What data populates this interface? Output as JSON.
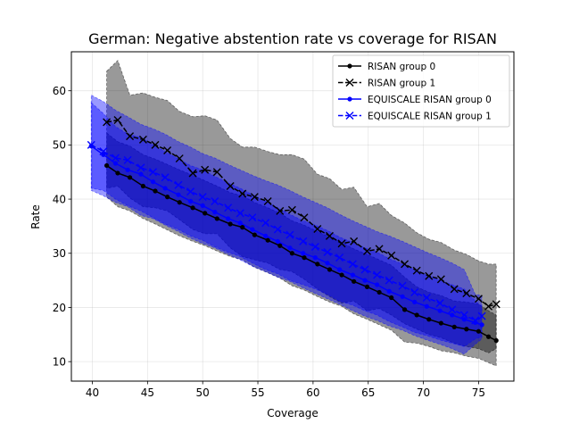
{
  "chart_data": {
    "type": "line",
    "title": "German: Negative abstention rate vs coverage for RISAN",
    "xlabel": "Coverage",
    "ylabel": "Rate",
    "xlim": [
      38.1,
      78.2
    ],
    "ylim": [
      6.4,
      67.2
    ],
    "xticks": [
      40,
      45,
      50,
      55,
      60,
      65,
      70,
      75
    ],
    "yticks": [
      10,
      20,
      30,
      40,
      50,
      60
    ],
    "grid": true,
    "legend_position": "top-right",
    "series": [
      {
        "name": "RISAN group 0",
        "color": "#000000",
        "marker": "dot",
        "linestyle": "solid",
        "band_color": "#000000",
        "x": [
          41.3,
          42.3,
          43.4,
          44.6,
          45.7,
          46.8,
          47.9,
          49.1,
          50.2,
          51.3,
          52.5,
          53.6,
          54.7,
          55.9,
          57.0,
          58.1,
          59.2,
          60.4,
          61.5,
          62.6,
          63.7,
          64.9,
          66.0,
          67.1,
          68.3,
          69.4,
          70.5,
          71.6,
          72.8,
          73.9,
          75.0,
          75.9,
          76.6
        ],
        "values": [
          46.2,
          44.8,
          44.0,
          42.4,
          41.5,
          40.4,
          39.4,
          38.4,
          37.4,
          36.4,
          35.4,
          34.8,
          33.4,
          32.4,
          31.4,
          30.0,
          29.2,
          28.0,
          27.0,
          26.0,
          24.8,
          23.8,
          22.8,
          21.8,
          19.6,
          18.6,
          17.8,
          17.1,
          16.4,
          16.0,
          15.6,
          14.6,
          13.9
        ],
        "lower": [
          40.4,
          38.6,
          37.8,
          36.4,
          35.4,
          34.3,
          33.2,
          32.2,
          31.4,
          30.4,
          29.4,
          28.8,
          27.4,
          26.4,
          25.4,
          24.0,
          23.2,
          22.0,
          21.0,
          20.2,
          18.8,
          17.8,
          16.8,
          15.8,
          13.6,
          13.4,
          12.8,
          12.0,
          11.6,
          11.0,
          10.6,
          9.8,
          9.2
        ],
        "upper": [
          52.2,
          50.6,
          49.8,
          48.2,
          47.4,
          46.4,
          45.4,
          44.4,
          43.4,
          42.4,
          41.2,
          40.6,
          39.4,
          38.4,
          37.4,
          36.0,
          35.2,
          34.0,
          33.0,
          32.0,
          30.8,
          29.8,
          28.8,
          27.8,
          25.6,
          23.8,
          22.8,
          22.2,
          21.2,
          21.0,
          20.6,
          19.4,
          18.6
        ]
      },
      {
        "name": "RISAN group 1",
        "color": "#000000",
        "marker": "x",
        "linestyle": "dashed",
        "band_color": "#000000",
        "x": [
          41.3,
          42.3,
          43.4,
          44.6,
          45.7,
          46.8,
          47.9,
          49.1,
          50.2,
          51.3,
          52.5,
          53.6,
          54.7,
          55.9,
          57.0,
          58.1,
          59.2,
          60.4,
          61.5,
          62.6,
          63.7,
          64.9,
          66.0,
          67.1,
          68.3,
          69.4,
          70.5,
          71.6,
          72.8,
          73.9,
          75.0,
          75.9,
          76.6
        ],
        "values": [
          54.2,
          54.6,
          51.6,
          51.0,
          50.0,
          49.0,
          47.5,
          44.8,
          45.4,
          45.0,
          42.4,
          41.0,
          40.4,
          39.6,
          37.8,
          38.0,
          36.6,
          34.5,
          33.2,
          31.8,
          32.2,
          30.4,
          30.8,
          29.6,
          28.0,
          26.8,
          25.8,
          25.2,
          23.4,
          22.6,
          21.6,
          20.2,
          20.6
        ],
        "lower": [
          42.0,
          42.4,
          40.2,
          38.6,
          38.4,
          37.8,
          36.2,
          34.4,
          33.6,
          33.6,
          31.0,
          29.4,
          28.8,
          28.2,
          27.0,
          26.6,
          25.2,
          23.4,
          22.0,
          20.8,
          21.2,
          19.4,
          19.8,
          18.6,
          17.0,
          16.0,
          15.0,
          14.4,
          13.4,
          12.8,
          12.4,
          11.6,
          12.4
        ],
        "upper": [
          63.6,
          65.6,
          59.2,
          59.6,
          58.8,
          58.2,
          56.2,
          55.2,
          55.4,
          54.6,
          51.2,
          49.6,
          49.6,
          48.8,
          48.2,
          48.2,
          47.4,
          44.6,
          43.8,
          41.8,
          42.2,
          38.6,
          39.2,
          37.0,
          35.6,
          33.8,
          32.6,
          32.0,
          30.6,
          29.8,
          28.6,
          28.0,
          28.0
        ]
      },
      {
        "name": "EQUISCALE RISAN group 0",
        "color": "#0000ff",
        "marker": "dot",
        "linestyle": "solid",
        "band_color": "#0000ff",
        "x": [
          39.9,
          41.0,
          42.1,
          43.2,
          44.4,
          45.5,
          46.6,
          47.8,
          48.9,
          50.0,
          51.1,
          52.3,
          53.4,
          54.5,
          55.7,
          56.8,
          57.9,
          59.1,
          60.2,
          61.3,
          62.4,
          63.6,
          64.7,
          65.8,
          66.9,
          68.1,
          69.2,
          70.3,
          71.5,
          72.6,
          73.7,
          74.7,
          75.3
        ],
        "values": [
          49.8,
          48.2,
          46.6,
          45.4,
          44.6,
          43.2,
          42.0,
          40.8,
          39.6,
          38.8,
          37.6,
          36.4,
          35.6,
          34.4,
          33.2,
          32.2,
          31.0,
          30.0,
          29.2,
          28.2,
          27.0,
          26.0,
          25.0,
          24.2,
          23.0,
          22.0,
          21.0,
          20.2,
          19.4,
          18.6,
          17.8,
          17.2,
          16.8
        ],
        "lower": [
          42.0,
          41.6,
          40.0,
          38.8,
          37.8,
          36.6,
          35.4,
          34.4,
          33.2,
          32.4,
          31.2,
          30.2,
          29.4,
          28.2,
          27.0,
          26.2,
          25.0,
          24.2,
          23.4,
          22.4,
          21.2,
          20.4,
          19.4,
          18.6,
          17.4,
          16.4,
          15.4,
          14.8,
          14.0,
          13.4,
          12.8,
          14.2,
          14.6
        ],
        "upper": [
          57.8,
          55.8,
          53.4,
          52.0,
          51.4,
          50.0,
          48.8,
          47.4,
          46.2,
          45.4,
          44.2,
          43.0,
          42.0,
          40.8,
          39.6,
          38.4,
          37.2,
          36.0,
          35.2,
          34.2,
          33.0,
          32.0,
          31.0,
          30.2,
          29.0,
          28.0,
          27.0,
          26.0,
          25.0,
          24.2,
          23.4,
          21.2,
          20.2
        ]
      },
      {
        "name": "EQUISCALE RISAN group 1",
        "color": "#0000ff",
        "marker": "x",
        "linestyle": "dashed",
        "band_color": "#0000ff",
        "x": [
          39.9,
          41.0,
          42.1,
          43.2,
          44.4,
          45.5,
          46.6,
          47.8,
          48.9,
          50.0,
          51.1,
          52.3,
          53.4,
          54.5,
          55.7,
          56.8,
          57.9,
          59.1,
          60.2,
          61.3,
          62.4,
          63.6,
          64.7,
          65.8,
          66.9,
          68.1,
          69.2,
          70.3,
          71.5,
          72.6,
          73.7,
          74.7,
          75.3
        ],
        "values": [
          50.0,
          48.8,
          47.6,
          47.2,
          45.8,
          45.0,
          44.0,
          42.6,
          41.4,
          40.4,
          39.6,
          38.4,
          37.4,
          36.6,
          35.6,
          34.4,
          33.4,
          32.2,
          31.2,
          30.2,
          29.2,
          28.0,
          27.0,
          26.0,
          25.0,
          24.0,
          22.8,
          21.8,
          20.8,
          19.6,
          18.6,
          17.6,
          18.4
        ],
        "lower": [
          41.6,
          40.6,
          39.4,
          38.6,
          37.0,
          36.4,
          35.2,
          34.0,
          32.8,
          31.8,
          31.0,
          29.8,
          28.8,
          27.6,
          26.6,
          25.6,
          24.8,
          23.6,
          22.6,
          21.6,
          20.6,
          19.4,
          18.4,
          17.6,
          16.6,
          15.8,
          14.8,
          14.0,
          13.2,
          12.4,
          11.4,
          13.2,
          14.2
        ],
        "upper": [
          59.2,
          58.0,
          56.4,
          55.2,
          53.8,
          53.0,
          52.0,
          50.6,
          49.6,
          48.4,
          47.6,
          46.4,
          45.4,
          44.4,
          43.4,
          42.6,
          41.6,
          40.4,
          39.4,
          38.4,
          37.2,
          36.0,
          35.0,
          34.0,
          33.2,
          32.2,
          31.2,
          30.2,
          29.2,
          28.2,
          27.0,
          22.4,
          22.2
        ]
      }
    ]
  }
}
